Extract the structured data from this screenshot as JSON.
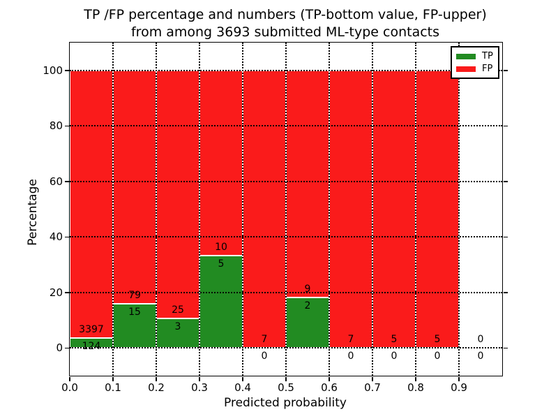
{
  "chart_data": {
    "type": "bar",
    "stacked": true,
    "title_lines": [
      "TP /FP percentage and numbers (TP-bottom value, FP-upper)",
      "from among 3693 submitted ML-type contacts"
    ],
    "xlabel": "Predicted probability",
    "ylabel": "Percentage",
    "xlim": [
      0.0,
      1.0
    ],
    "ylim": [
      -10,
      110
    ],
    "x_tick_labels": [
      "0.0",
      "0.1",
      "0.2",
      "0.3",
      "0.4",
      "0.5",
      "0.6",
      "0.7",
      "0.8",
      "0.9"
    ],
    "y_tick_values": [
      0,
      20,
      40,
      60,
      80,
      100
    ],
    "grid_style": "black dotted",
    "bar_edge_color": "#ffffff",
    "legend_position": "upper right",
    "series": [
      {
        "name": "TP",
        "color": "#228b22"
      },
      {
        "name": "FP",
        "color": "#fa1b1b"
      }
    ],
    "bins": [
      {
        "x_start": 0.0,
        "x_end": 0.1,
        "tp": 124,
        "fp": 3397
      },
      {
        "x_start": 0.1,
        "x_end": 0.2,
        "tp": 15,
        "fp": 79
      },
      {
        "x_start": 0.2,
        "x_end": 0.3,
        "tp": 3,
        "fp": 25
      },
      {
        "x_start": 0.3,
        "x_end": 0.4,
        "tp": 5,
        "fp": 10
      },
      {
        "x_start": 0.4,
        "x_end": 0.5,
        "tp": 0,
        "fp": 7
      },
      {
        "x_start": 0.5,
        "x_end": 0.6,
        "tp": 2,
        "fp": 9
      },
      {
        "x_start": 0.6,
        "x_end": 0.7,
        "tp": 0,
        "fp": 7
      },
      {
        "x_start": 0.7,
        "x_end": 0.8,
        "tp": 0,
        "fp": 5
      },
      {
        "x_start": 0.8,
        "x_end": 0.9,
        "tp": 0,
        "fp": 5
      },
      {
        "x_start": 0.9,
        "x_end": 1.0,
        "tp": 0,
        "fp": 0
      }
    ]
  }
}
